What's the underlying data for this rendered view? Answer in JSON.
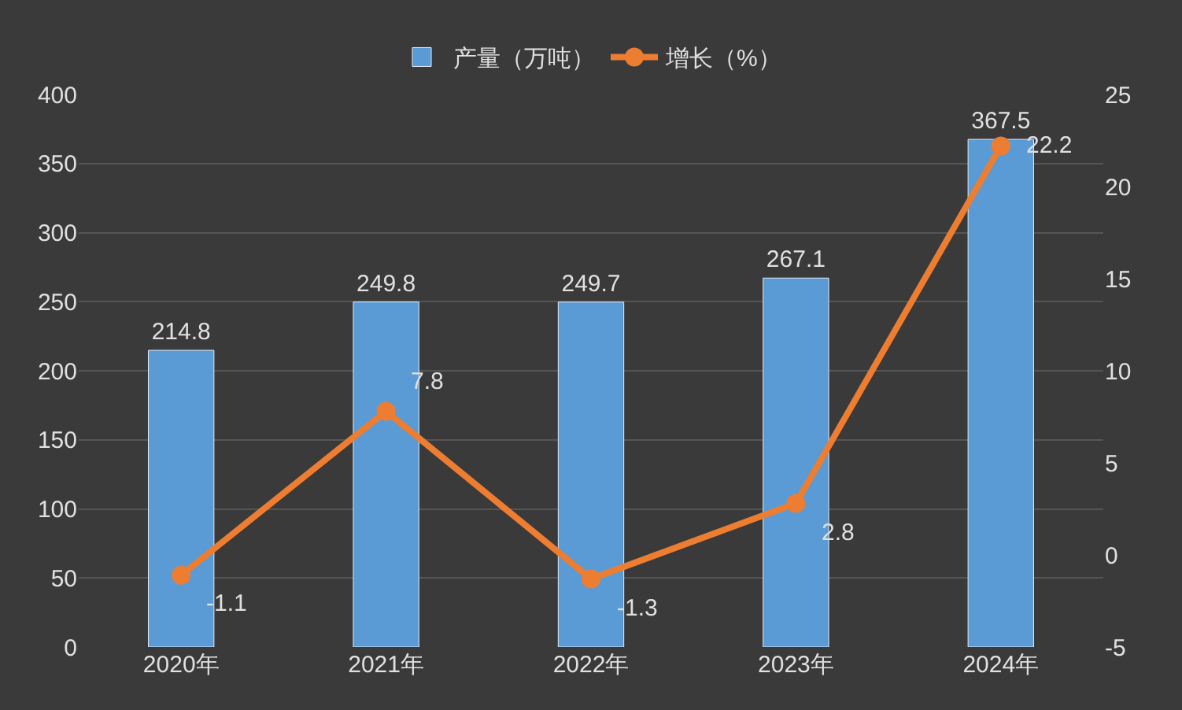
{
  "chart_data": {
    "type": "bar",
    "categories": [
      "2020年",
      "2021年",
      "2022年",
      "2023年",
      "2024年"
    ],
    "series": [
      {
        "name": "产量（万吨）",
        "color": "#5b9bd5",
        "values": [
          214.8,
          249.8,
          249.7,
          267.1,
          367.5
        ]
      },
      {
        "name": "增长（%）",
        "type": "line",
        "axis": "y2",
        "color": "#ed7d31",
        "values": [
          -1.1,
          7.8,
          -1.3,
          2.8,
          22.2
        ]
      }
    ],
    "ylim": [
      0,
      400
    ],
    "yticks": [
      0,
      50,
      100,
      150,
      200,
      250,
      300,
      350,
      400
    ],
    "y2lim": [
      -5,
      25
    ],
    "y2ticks": [
      -5,
      0,
      5,
      10,
      15,
      20,
      25
    ],
    "grid": "y",
    "legend": "top",
    "marker": "circle",
    "line_style": "solid",
    "data_labels": true
  }
}
